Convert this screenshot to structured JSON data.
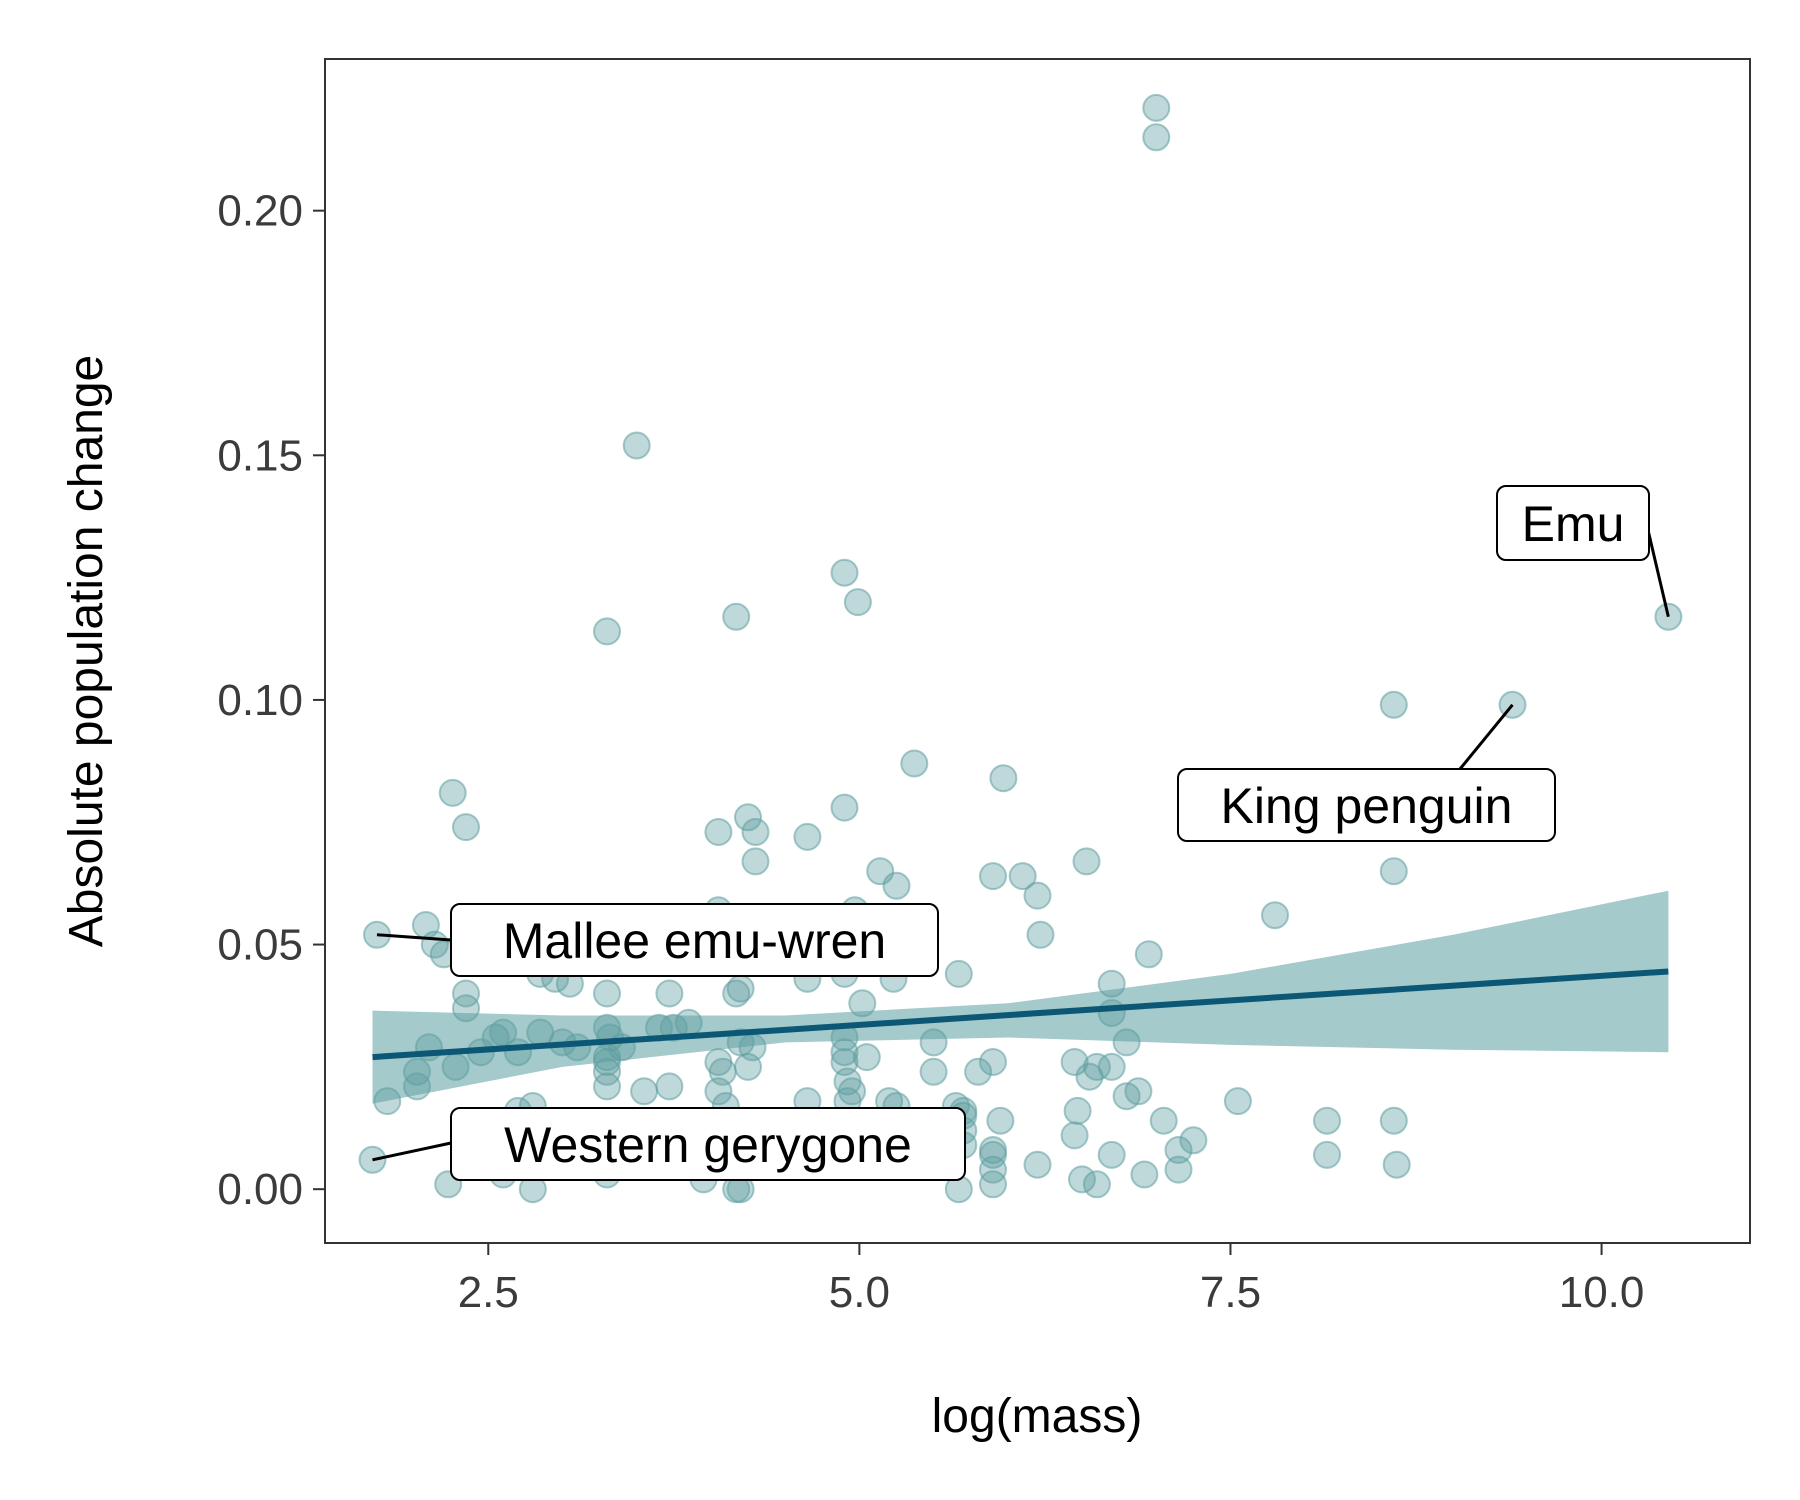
{
  "chart_data": {
    "type": "scatter",
    "xlabel": "log(mass)",
    "ylabel": "Absolute population change",
    "xlim": [
      1.4,
      11.0
    ],
    "ylim": [
      -0.011,
      0.231
    ],
    "x_ticks": [
      2.5,
      5.0,
      7.5,
      10.0
    ],
    "x_tick_labels": [
      "2.5",
      "5.0",
      "7.5",
      "10.0"
    ],
    "y_ticks": [
      0.0,
      0.05,
      0.1,
      0.15,
      0.2
    ],
    "y_tick_labels": [
      "0.00",
      "0.05",
      "0.10",
      "0.15",
      "0.20"
    ],
    "grid": false,
    "colors": {
      "point": "#5f9ea0",
      "trend_line": "#0b5775",
      "confidence_band": "#9fc7c8",
      "axis": "#333333"
    },
    "points": [
      {
        "x": 7.0,
        "y": 0.221
      },
      {
        "x": 7.0,
        "y": 0.215
      },
      {
        "x": 3.5,
        "y": 0.152
      },
      {
        "x": 4.9,
        "y": 0.126
      },
      {
        "x": 4.99,
        "y": 0.12
      },
      {
        "x": 4.17,
        "y": 0.117
      },
      {
        "x": 3.3,
        "y": 0.114
      },
      {
        "x": 10.45,
        "y": 0.117
      },
      {
        "x": 9.4,
        "y": 0.099
      },
      {
        "x": 8.6,
        "y": 0.099
      },
      {
        "x": 5.37,
        "y": 0.087
      },
      {
        "x": 5.97,
        "y": 0.084
      },
      {
        "x": 2.26,
        "y": 0.081
      },
      {
        "x": 4.9,
        "y": 0.078
      },
      {
        "x": 2.35,
        "y": 0.074
      },
      {
        "x": 4.05,
        "y": 0.073
      },
      {
        "x": 4.25,
        "y": 0.076
      },
      {
        "x": 4.3,
        "y": 0.073
      },
      {
        "x": 4.65,
        "y": 0.072
      },
      {
        "x": 4.3,
        "y": 0.067
      },
      {
        "x": 6.53,
        "y": 0.067
      },
      {
        "x": 5.14,
        "y": 0.065
      },
      {
        "x": 5.25,
        "y": 0.062
      },
      {
        "x": 5.9,
        "y": 0.064
      },
      {
        "x": 6.1,
        "y": 0.064
      },
      {
        "x": 6.2,
        "y": 0.06
      },
      {
        "x": 8.6,
        "y": 0.065
      },
      {
        "x": 7.8,
        "y": 0.056
      },
      {
        "x": 4.05,
        "y": 0.057
      },
      {
        "x": 4.97,
        "y": 0.057
      },
      {
        "x": 1.75,
        "y": 0.052
      },
      {
        "x": 2.08,
        "y": 0.054
      },
      {
        "x": 2.14,
        "y": 0.05
      },
      {
        "x": 2.2,
        "y": 0.048
      },
      {
        "x": 6.22,
        "y": 0.052
      },
      {
        "x": 6.95,
        "y": 0.048
      },
      {
        "x": 5.67,
        "y": 0.044
      },
      {
        "x": 2.35,
        "y": 0.04
      },
      {
        "x": 2.35,
        "y": 0.037
      },
      {
        "x": 2.85,
        "y": 0.044
      },
      {
        "x": 2.95,
        "y": 0.043
      },
      {
        "x": 3.05,
        "y": 0.042
      },
      {
        "x": 3.3,
        "y": 0.04
      },
      {
        "x": 3.72,
        "y": 0.04
      },
      {
        "x": 4.17,
        "y": 0.04
      },
      {
        "x": 4.2,
        "y": 0.041
      },
      {
        "x": 4.65,
        "y": 0.043
      },
      {
        "x": 4.9,
        "y": 0.044
      },
      {
        "x": 5.23,
        "y": 0.043
      },
      {
        "x": 5.02,
        "y": 0.038
      },
      {
        "x": 6.7,
        "y": 0.042
      },
      {
        "x": 6.7,
        "y": 0.036
      },
      {
        "x": 6.8,
        "y": 0.03
      },
      {
        "x": 2.02,
        "y": 0.024
      },
      {
        "x": 2.02,
        "y": 0.021
      },
      {
        "x": 2.1,
        "y": 0.029
      },
      {
        "x": 2.28,
        "y": 0.025
      },
      {
        "x": 2.45,
        "y": 0.028
      },
      {
        "x": 2.55,
        "y": 0.031
      },
      {
        "x": 2.6,
        "y": 0.032
      },
      {
        "x": 2.7,
        "y": 0.028
      },
      {
        "x": 2.85,
        "y": 0.032
      },
      {
        "x": 3.0,
        "y": 0.03
      },
      {
        "x": 3.1,
        "y": 0.029
      },
      {
        "x": 3.3,
        "y": 0.033
      },
      {
        "x": 3.32,
        "y": 0.031
      },
      {
        "x": 3.3,
        "y": 0.027
      },
      {
        "x": 3.3,
        "y": 0.026
      },
      {
        "x": 3.3,
        "y": 0.024
      },
      {
        "x": 3.3,
        "y": 0.021
      },
      {
        "x": 3.4,
        "y": 0.029
      },
      {
        "x": 3.55,
        "y": 0.02
      },
      {
        "x": 3.65,
        "y": 0.033
      },
      {
        "x": 3.75,
        "y": 0.033
      },
      {
        "x": 3.85,
        "y": 0.034
      },
      {
        "x": 3.72,
        "y": 0.021
      },
      {
        "x": 4.05,
        "y": 0.026
      },
      {
        "x": 4.08,
        "y": 0.024
      },
      {
        "x": 4.05,
        "y": 0.02
      },
      {
        "x": 4.1,
        "y": 0.017
      },
      {
        "x": 4.2,
        "y": 0.03
      },
      {
        "x": 4.28,
        "y": 0.029
      },
      {
        "x": 4.25,
        "y": 0.025
      },
      {
        "x": 4.65,
        "y": 0.018
      },
      {
        "x": 4.9,
        "y": 0.031
      },
      {
        "x": 4.9,
        "y": 0.028
      },
      {
        "x": 4.9,
        "y": 0.026
      },
      {
        "x": 4.92,
        "y": 0.022
      },
      {
        "x": 4.95,
        "y": 0.02
      },
      {
        "x": 5.05,
        "y": 0.027
      },
      {
        "x": 4.92,
        "y": 0.018
      },
      {
        "x": 5.2,
        "y": 0.018
      },
      {
        "x": 5.25,
        "y": 0.017
      },
      {
        "x": 5.5,
        "y": 0.03
      },
      {
        "x": 5.5,
        "y": 0.024
      },
      {
        "x": 5.65,
        "y": 0.017
      },
      {
        "x": 5.7,
        "y": 0.016
      },
      {
        "x": 5.7,
        "y": 0.015
      },
      {
        "x": 5.8,
        "y": 0.024
      },
      {
        "x": 5.9,
        "y": 0.026
      },
      {
        "x": 5.95,
        "y": 0.014
      },
      {
        "x": 6.45,
        "y": 0.026
      },
      {
        "x": 6.55,
        "y": 0.023
      },
      {
        "x": 6.6,
        "y": 0.025
      },
      {
        "x": 6.7,
        "y": 0.025
      },
      {
        "x": 6.8,
        "y": 0.019
      },
      {
        "x": 6.88,
        "y": 0.02
      },
      {
        "x": 6.47,
        "y": 0.016
      },
      {
        "x": 7.05,
        "y": 0.014
      },
      {
        "x": 7.55,
        "y": 0.018
      },
      {
        "x": 1.82,
        "y": 0.018
      },
      {
        "x": 2.7,
        "y": 0.016
      },
      {
        "x": 2.8,
        "y": 0.017
      },
      {
        "x": 1.72,
        "y": 0.006
      },
      {
        "x": 2.23,
        "y": 0.001
      },
      {
        "x": 2.6,
        "y": 0.003
      },
      {
        "x": 2.8,
        "y": 0.0
      },
      {
        "x": 3.3,
        "y": 0.003
      },
      {
        "x": 3.95,
        "y": 0.002
      },
      {
        "x": 4.17,
        "y": 0.0
      },
      {
        "x": 4.2,
        "y": 0.0
      },
      {
        "x": 4.3,
        "y": 0.005
      },
      {
        "x": 5.2,
        "y": 0.005
      },
      {
        "x": 5.67,
        "y": 0.0
      },
      {
        "x": 5.7,
        "y": 0.009
      },
      {
        "x": 5.7,
        "y": 0.012
      },
      {
        "x": 5.9,
        "y": 0.008
      },
      {
        "x": 5.9,
        "y": 0.004
      },
      {
        "x": 5.9,
        "y": 0.001
      },
      {
        "x": 5.9,
        "y": 0.007
      },
      {
        "x": 6.2,
        "y": 0.005
      },
      {
        "x": 6.45,
        "y": 0.011
      },
      {
        "x": 6.5,
        "y": 0.002
      },
      {
        "x": 6.6,
        "y": 0.001
      },
      {
        "x": 6.7,
        "y": 0.007
      },
      {
        "x": 6.92,
        "y": 0.003
      },
      {
        "x": 7.15,
        "y": 0.004
      },
      {
        "x": 7.15,
        "y": 0.008
      },
      {
        "x": 7.25,
        "y": 0.01
      },
      {
        "x": 8.15,
        "y": 0.007
      },
      {
        "x": 8.15,
        "y": 0.014
      },
      {
        "x": 8.6,
        "y": 0.014
      },
      {
        "x": 8.62,
        "y": 0.005
      }
    ],
    "trend_line": {
      "x": [
        1.72,
        10.45
      ],
      "y": [
        0.027,
        0.0445
      ]
    },
    "confidence_band": {
      "x": [
        1.72,
        3.0,
        4.5,
        6.0,
        7.5,
        9.0,
        10.45
      ],
      "upper": [
        0.0365,
        0.0355,
        0.0355,
        0.038,
        0.044,
        0.052,
        0.061
      ],
      "lower": [
        0.0175,
        0.025,
        0.03,
        0.031,
        0.0295,
        0.0285,
        0.028
      ]
    },
    "annotations": [
      {
        "text": "Emu",
        "x": 10.45,
        "y": 0.117
      },
      {
        "text": "King penguin",
        "x": 9.4,
        "y": 0.099
      },
      {
        "text": "Mallee emu-wren",
        "x": 1.75,
        "y": 0.052
      },
      {
        "text": "Western gerygone",
        "x": 1.72,
        "y": 0.006
      }
    ]
  }
}
